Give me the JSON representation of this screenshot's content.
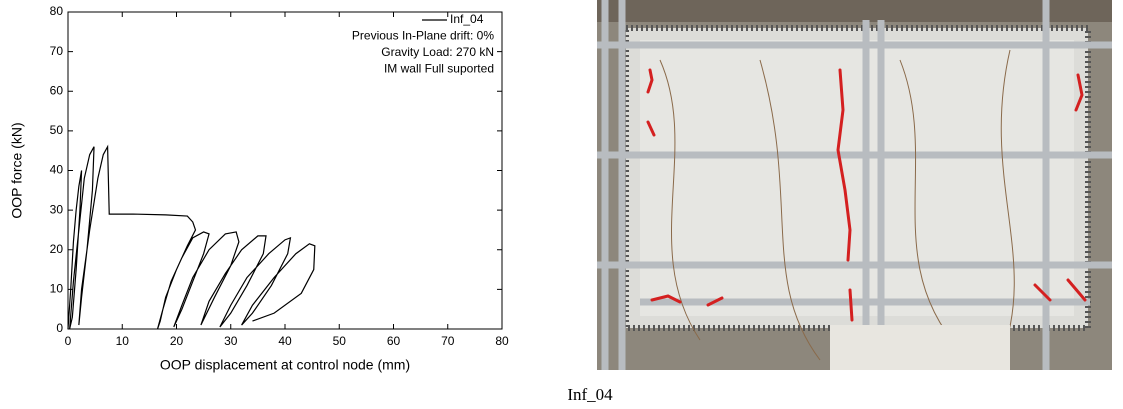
{
  "chart_data": {
    "type": "line",
    "x_label": "OOP displacement at control node (mm)",
    "y_label": "OOP force (kN)",
    "x": [
      0,
      0.5,
      1,
      1.5,
      2,
      2.5,
      2.2,
      1.5,
      0.8,
      0.3,
      1,
      2,
      3,
      4,
      4.8,
      4.5,
      3.5,
      2.5,
      2,
      2.5,
      4,
      5.5,
      6.5,
      7.3,
      7.6,
      12,
      18,
      22,
      23,
      23.5,
      22,
      20,
      18,
      17,
      16.5,
      17.5,
      19,
      21,
      23,
      25,
      26,
      25,
      23,
      21,
      19.5,
      21,
      23,
      26,
      29,
      31,
      31.5,
      30,
      27,
      24.5,
      26,
      29,
      32,
      35,
      36.5,
      36,
      33,
      30,
      28,
      30,
      33,
      37,
      40,
      41,
      40.5,
      37.5,
      34,
      32,
      34,
      38,
      42,
      44.5,
      45.5,
      45.3,
      43,
      38,
      34
    ],
    "series": [
      {
        "name": "Inf_04",
        "color": "#000000",
        "values": [
          0,
          10,
          22,
          30,
          36,
          40,
          30,
          15,
          3,
          0,
          12,
          25,
          38,
          44,
          46,
          35,
          20,
          8,
          1,
          10,
          25,
          38,
          44,
          46,
          29,
          29,
          28.8,
          28.5,
          27,
          25,
          21,
          15,
          8,
          2,
          0,
          5,
          12,
          18,
          23,
          24.5,
          24,
          19,
          12,
          5,
          0.5,
          6,
          13,
          20,
          24,
          24.5,
          22,
          16,
          8,
          1,
          7,
          14,
          20,
          23.5,
          23.5,
          19,
          11,
          4,
          0.5,
          6,
          13,
          19,
          22.5,
          23,
          19,
          11,
          4,
          1,
          6,
          13,
          19,
          21.5,
          21,
          15,
          9,
          4,
          2
        ]
      }
    ],
    "xlim": [
      0,
      80
    ],
    "ylim": [
      0,
      80
    ],
    "xticks": [
      0,
      10,
      20,
      30,
      40,
      50,
      60,
      70,
      80
    ],
    "yticks": [
      0,
      10,
      20,
      30,
      40,
      50,
      60,
      70,
      80
    ],
    "annotations": [
      "Previous In-Plane drift: 0%",
      "Gravity Load: 270 kN",
      "IM wall Full suported"
    ],
    "legend": "upper right"
  },
  "caption": "Inf_04"
}
